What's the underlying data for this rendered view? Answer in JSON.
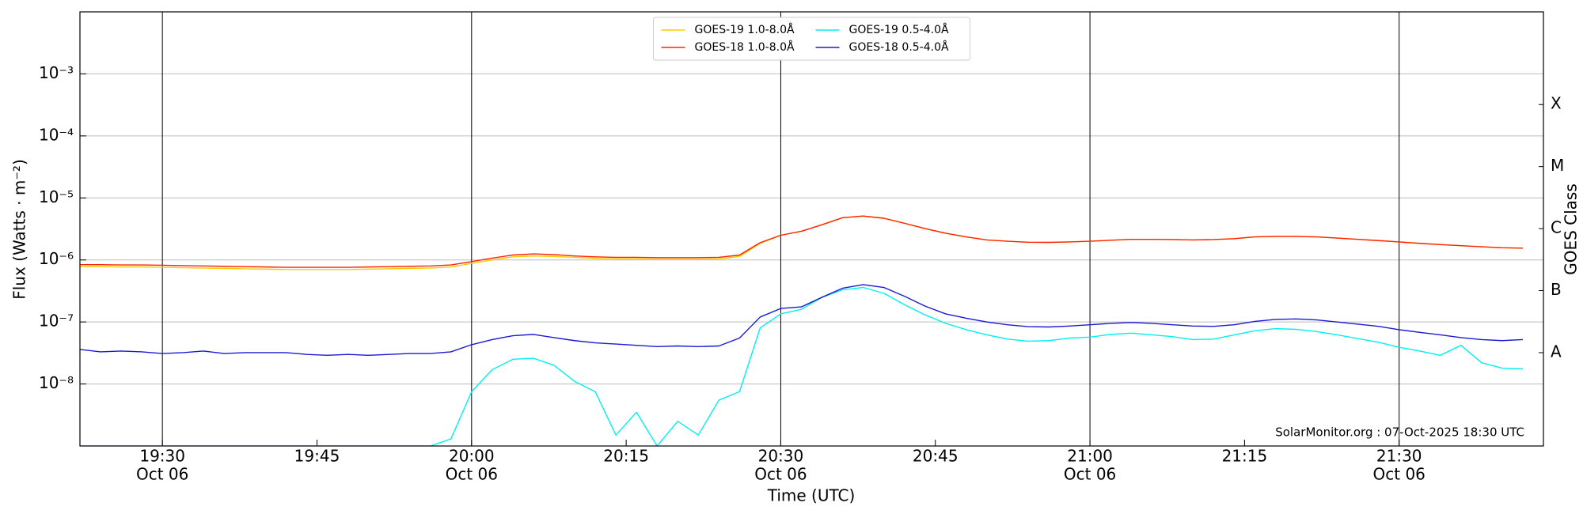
{
  "chart_data": {
    "type": "line",
    "y_label": "Flux (Watts · m⁻²)",
    "x_label": "Time (UTC)",
    "y2_label": "GOES Class",
    "annotation": "SolarMonitor.org : 07-Oct-2025 18:30 UTC",
    "log_y": true,
    "grid": true,
    "legend": "upper center",
    "legend_columns": 2,
    "xlim": [
      "19:22",
      "21:44"
    ],
    "xticks": [
      {
        "value": "19:30",
        "label": [
          "19:30",
          "Oct 06"
        ]
      },
      "19:45",
      {
        "value": "20:00",
        "label": [
          "20:00",
          "Oct 06"
        ]
      },
      "20:15",
      {
        "value": "20:30",
        "label": [
          "20:30",
          "Oct 06"
        ]
      },
      "20:45",
      {
        "value": "21:00",
        "label": [
          "21:00",
          "Oct 06"
        ]
      },
      "21:15",
      {
        "value": "21:30",
        "label": [
          "21:30",
          "Oct 06"
        ]
      }
    ],
    "ylim": [
      1e-09,
      0.01
    ],
    "yticks": [
      {
        "value": 1e-08,
        "label": "10⁻⁸"
      },
      {
        "value": 1e-07,
        "label": "10⁻⁷"
      },
      {
        "value": 1e-06,
        "label": "10⁻⁶"
      },
      {
        "value": 1e-05,
        "label": "10⁻⁵"
      },
      {
        "value": 0.0001,
        "label": "10⁻⁴"
      },
      {
        "value": 0.001,
        "label": "10⁻³"
      }
    ],
    "y2lim": [
      1e-09,
      0.01
    ],
    "y2ticks": [
      {
        "value": 3.2e-08,
        "label": "A"
      },
      {
        "value": 3.2e-07,
        "label": "B"
      },
      {
        "value": 3.2e-06,
        "label": "C"
      },
      {
        "value": 3.2e-05,
        "label": "M"
      },
      {
        "value": 0.00032,
        "label": "X"
      }
    ],
    "x": [
      "19:22",
      "19:24",
      "19:26",
      "19:28",
      "19:30",
      "19:32",
      "19:34",
      "19:36",
      "19:38",
      "19:40",
      "19:42",
      "19:44",
      "19:46",
      "19:48",
      "19:50",
      "19:52",
      "19:54",
      "19:56",
      "19:58",
      "20:00",
      "20:02",
      "20:04",
      "20:06",
      "20:08",
      "20:10",
      "20:12",
      "20:14",
      "20:16",
      "20:18",
      "20:20",
      "20:22",
      "20:24",
      "20:26",
      "20:28",
      "20:30",
      "20:32",
      "20:34",
      "20:36",
      "20:38",
      "20:40",
      "20:42",
      "20:44",
      "20:46",
      "20:48",
      "20:50",
      "20:52",
      "20:54",
      "20:56",
      "20:58",
      "21:00",
      "21:02",
      "21:04",
      "21:06",
      "21:08",
      "21:10",
      "21:12",
      "21:14",
      "21:16",
      "21:18",
      "21:20",
      "21:22",
      "21:24",
      "21:26",
      "21:28",
      "21:30",
      "21:32",
      "21:34",
      "21:36",
      "21:38",
      "21:40",
      "21:42"
    ],
    "series": [
      {
        "name": "GOES-19 1.0-8.0Å",
        "color": "#ffcc00",
        "values": [
          7.8e-07,
          7.8e-07,
          7.7e-07,
          7.7e-07,
          7.6e-07,
          7.5e-07,
          7.4e-07,
          7.3e-07,
          7.2e-07,
          7.1e-07,
          7e-07,
          7e-07,
          7e-07,
          7e-07,
          7.1e-07,
          7.2e-07,
          7.3e-07,
          7.4e-07,
          7.7e-07,
          8.8e-07,
          1e-06,
          1.12e-06,
          1.16e-06,
          1.14e-06,
          1.1e-06,
          1.06e-06,
          1.04e-06,
          1.04e-06,
          1.03e-06,
          1.03e-06,
          1.03e-06,
          1.04e-06,
          1.14e-06,
          1.85e-06,
          2.5e-06,
          2.9e-06,
          3.7e-06,
          4.8e-06,
          5.1e-06,
          4.7e-06,
          3.9e-06,
          3.2e-06,
          2.7e-06,
          2.35e-06,
          2.1e-06,
          2e-06,
          1.93e-06,
          1.92e-06,
          1.95e-06,
          2e-06,
          2.08e-06,
          2.15e-06,
          2.15e-06,
          2.13e-06,
          2.1e-06,
          2.13e-06,
          2.2e-06,
          2.35e-06,
          2.4e-06,
          2.4e-06,
          2.35e-06,
          2.25e-06,
          2.15e-06,
          2.05e-06,
          1.95e-06,
          1.85e-06,
          1.77e-06,
          1.7e-06,
          1.63e-06,
          1.57e-06,
          1.55e-06
        ]
      },
      {
        "name": "GOES-18 1.0-8.0Å",
        "color": "#ff2200",
        "values": [
          8.4e-07,
          8.4e-07,
          8.3e-07,
          8.3e-07,
          8.2e-07,
          8.1e-07,
          8e-07,
          7.9e-07,
          7.8e-07,
          7.7e-07,
          7.6e-07,
          7.6e-07,
          7.6e-07,
          7.6e-07,
          7.7e-07,
          7.8e-07,
          7.9e-07,
          8e-07,
          8.3e-07,
          9.4e-07,
          1.07e-06,
          1.2e-06,
          1.25e-06,
          1.22e-06,
          1.16e-06,
          1.12e-06,
          1.1e-06,
          1.1e-06,
          1.09e-06,
          1.09e-06,
          1.09e-06,
          1.1e-06,
          1.2e-06,
          1.9e-06,
          2.5e-06,
          2.9e-06,
          3.7e-06,
          4.8e-06,
          5.1e-06,
          4.7e-06,
          3.9e-06,
          3.2e-06,
          2.7e-06,
          2.35e-06,
          2.1e-06,
          2e-06,
          1.93e-06,
          1.92e-06,
          1.95e-06,
          2e-06,
          2.08e-06,
          2.15e-06,
          2.15e-06,
          2.13e-06,
          2.1e-06,
          2.13e-06,
          2.2e-06,
          2.35e-06,
          2.4e-06,
          2.4e-06,
          2.35e-06,
          2.25e-06,
          2.15e-06,
          2.05e-06,
          1.95e-06,
          1.85e-06,
          1.77e-06,
          1.7e-06,
          1.63e-06,
          1.57e-06,
          1.55e-06
        ]
      },
      {
        "name": "GOES-19 0.5-4.0Å",
        "color": "#00f0f0",
        "values": [
          1e-09,
          1e-09,
          1e-09,
          1e-09,
          1e-09,
          1e-09,
          1e-09,
          1e-09,
          1e-09,
          1e-09,
          1e-09,
          1e-09,
          1e-09,
          1e-09,
          1e-09,
          1e-09,
          1e-09,
          1e-09,
          1.3e-09,
          7.5e-09,
          1.7e-08,
          2.5e-08,
          2.6e-08,
          2e-08,
          1.1e-08,
          7.5e-09,
          1.5e-09,
          3.5e-09,
          1e-09,
          2.5e-09,
          1.5e-09,
          5.5e-09,
          7.5e-09,
          8e-08,
          1.35e-07,
          1.6e-07,
          2.5e-07,
          3.3e-07,
          3.6e-07,
          2.9e-07,
          1.9e-07,
          1.3e-07,
          9.5e-08,
          7.5e-08,
          6.2e-08,
          5.3e-08,
          4.9e-08,
          5e-08,
          5.5e-08,
          5.7e-08,
          6.3e-08,
          6.6e-08,
          6.2e-08,
          5.8e-08,
          5.2e-08,
          5.3e-08,
          6.2e-08,
          7.2e-08,
          7.8e-08,
          7.6e-08,
          7e-08,
          6.2e-08,
          5.4e-08,
          4.7e-08,
          3.9e-08,
          3.4e-08,
          2.9e-08,
          4.2e-08,
          2.2e-08,
          1.8e-08,
          1.75e-08
        ]
      },
      {
        "name": "GOES-18 0.5-4.0Å",
        "color": "#1a1ad4",
        "values": [
          3.6e-08,
          3.3e-08,
          3.4e-08,
          3.3e-08,
          3.1e-08,
          3.2e-08,
          3.4e-08,
          3.1e-08,
          3.2e-08,
          3.2e-08,
          3.2e-08,
          3e-08,
          2.9e-08,
          3e-08,
          2.9e-08,
          3e-08,
          3.1e-08,
          3.1e-08,
          3.3e-08,
          4.3e-08,
          5.2e-08,
          6e-08,
          6.3e-08,
          5.6e-08,
          5e-08,
          4.6e-08,
          4.4e-08,
          4.2e-08,
          4e-08,
          4.1e-08,
          4e-08,
          4.1e-08,
          5.5e-08,
          1.2e-07,
          1.65e-07,
          1.75e-07,
          2.5e-07,
          3.5e-07,
          4e-07,
          3.6e-07,
          2.6e-07,
          1.8e-07,
          1.35e-07,
          1.15e-07,
          1e-07,
          9e-08,
          8.4e-08,
          8.3e-08,
          8.6e-08,
          9e-08,
          9.5e-08,
          9.8e-08,
          9.5e-08,
          9e-08,
          8.6e-08,
          8.5e-08,
          9e-08,
          1.02e-07,
          1.1e-07,
          1.12e-07,
          1.08e-07,
          1e-07,
          9.2e-08,
          8.5e-08,
          7.5e-08,
          6.8e-08,
          6.2e-08,
          5.6e-08,
          5.2e-08,
          5e-08,
          5.2e-08
        ]
      }
    ]
  }
}
